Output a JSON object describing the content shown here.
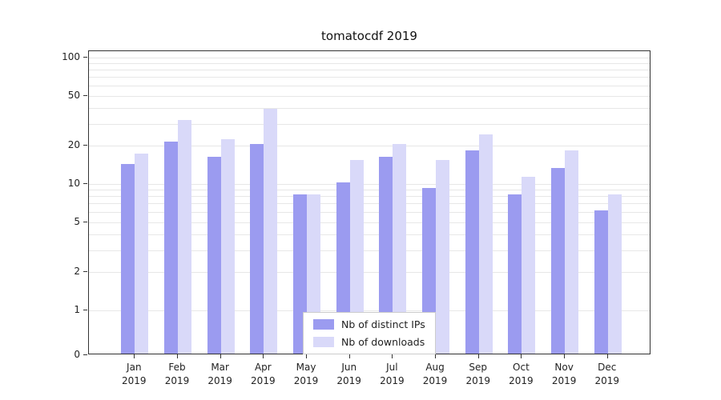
{
  "title": "tomatocdf 2019",
  "chart_data": {
    "type": "bar",
    "title": "tomatocdf 2019",
    "xlabel": "",
    "ylabel": "",
    "yscale": "symlog",
    "ylim": [
      0,
      100
    ],
    "grid": true,
    "legend_position": "lower center",
    "ytick_values": [
      0,
      1,
      2,
      5,
      10,
      20,
      50,
      100
    ],
    "gridline_values": [
      1,
      2,
      3,
      4,
      5,
      6,
      7,
      8,
      9,
      10,
      20,
      30,
      40,
      50,
      60,
      70,
      80,
      90,
      100
    ],
    "categories": [
      {
        "month": "Jan",
        "year": "2019"
      },
      {
        "month": "Feb",
        "year": "2019"
      },
      {
        "month": "Mar",
        "year": "2019"
      },
      {
        "month": "Apr",
        "year": "2019"
      },
      {
        "month": "May",
        "year": "2019"
      },
      {
        "month": "Jun",
        "year": "2019"
      },
      {
        "month": "Jul",
        "year": "2019"
      },
      {
        "month": "Aug",
        "year": "2019"
      },
      {
        "month": "Sep",
        "year": "2019"
      },
      {
        "month": "Oct",
        "year": "2019"
      },
      {
        "month": "Nov",
        "year": "2019"
      },
      {
        "month": "Dec",
        "year": "2019"
      }
    ],
    "series": [
      {
        "name": "Nb of distinct IPs",
        "color": "#9b9bf0",
        "values": [
          14,
          21,
          16,
          20,
          8,
          10,
          16,
          9,
          18,
          8,
          13,
          6
        ]
      },
      {
        "name": "Nb of downloads",
        "color": "#d9d9f9",
        "values": [
          17,
          31,
          22,
          38,
          8,
          15,
          20,
          15,
          24,
          11,
          18,
          8
        ]
      }
    ]
  }
}
